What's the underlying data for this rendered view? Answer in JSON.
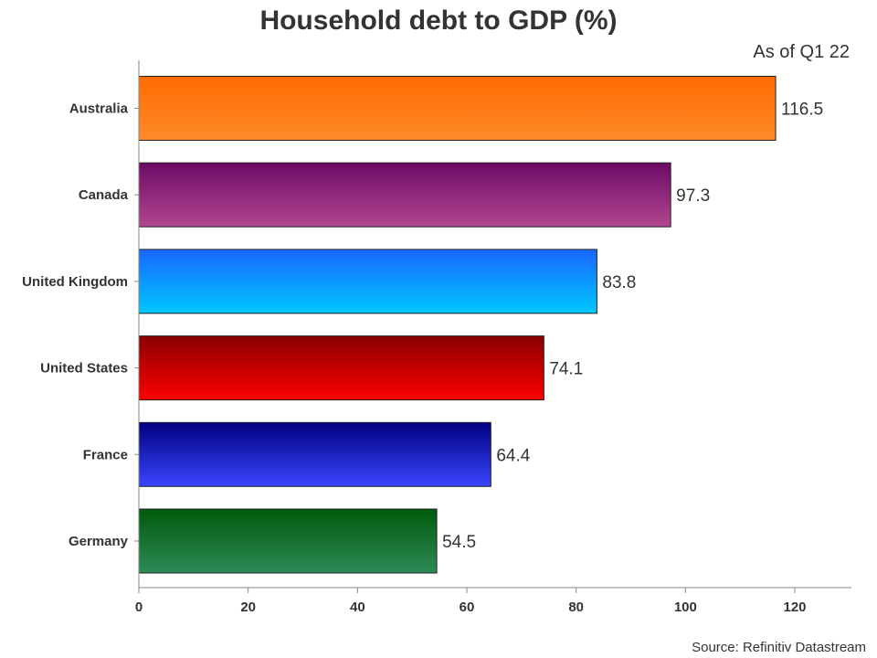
{
  "chart_data": {
    "type": "bar",
    "orientation": "horizontal",
    "title": "Household debt to GDP (%)",
    "subtitle": "As of Q1 22",
    "source": "Source: Refinitiv Datastream",
    "categories": [
      "Australia",
      "Canada",
      "United Kingdom",
      "United States",
      "France",
      "Germany"
    ],
    "values": [
      116.5,
      97.3,
      83.8,
      74.1,
      64.4,
      54.5
    ],
    "value_labels": [
      "116.5",
      "97.3",
      "83.8",
      "74.1",
      "64.4",
      "54.5"
    ],
    "bar_colors": [
      [
        "#ff6a00",
        "#ff8a2a"
      ],
      [
        "#6b0a66",
        "#b3478f"
      ],
      [
        "#1a66ff",
        "#00c8ff"
      ],
      [
        "#8b0000",
        "#ff0000"
      ],
      [
        "#000080",
        "#3a45ff"
      ],
      [
        "#005a0c",
        "#2e8b57"
      ]
    ],
    "xlim": [
      0,
      130
    ],
    "xticks": [
      0,
      20,
      40,
      60,
      80,
      100,
      120
    ],
    "xtick_labels": [
      "0",
      "20",
      "40",
      "60",
      "80",
      "100",
      "120"
    ],
    "grid": false,
    "legend": "none"
  }
}
